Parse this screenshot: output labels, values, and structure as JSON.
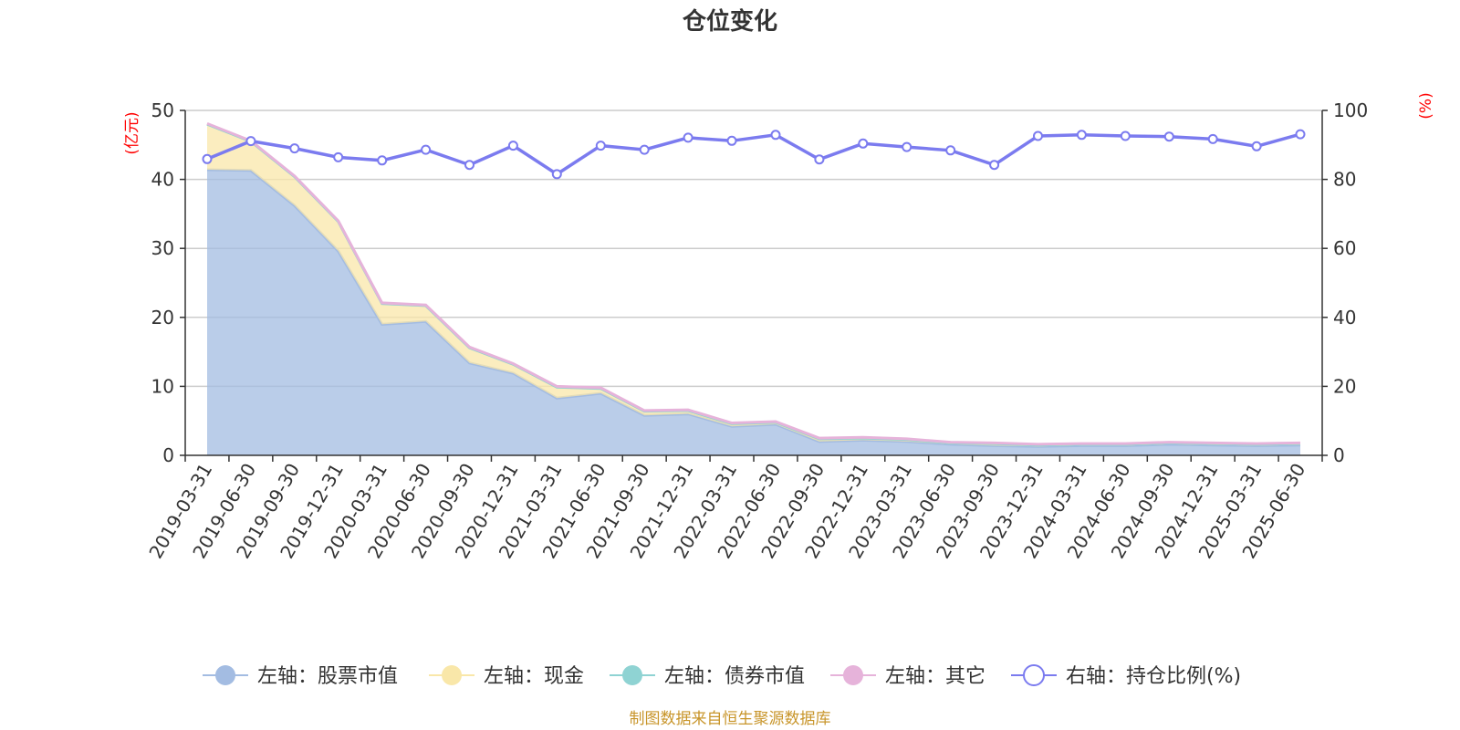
{
  "title": "仓位变化",
  "source": "制图数据来自恒生聚源数据库",
  "chart_data": {
    "type": "area",
    "categories": [
      "2019-03-31",
      "2019-06-30",
      "2019-09-30",
      "2019-12-31",
      "2020-03-31",
      "2020-06-30",
      "2020-09-30",
      "2020-12-31",
      "2021-03-31",
      "2021-06-30",
      "2021-09-30",
      "2021-12-31",
      "2022-03-31",
      "2022-06-30",
      "2022-09-30",
      "2022-12-31",
      "2023-03-31",
      "2023-06-30",
      "2023-09-30",
      "2023-12-31",
      "2024-03-31",
      "2024-06-30",
      "2024-09-30",
      "2024-12-31",
      "2025-03-31",
      "2025-06-30"
    ],
    "y_left": {
      "unit": "(亿元)",
      "min": 0,
      "max": 50,
      "ticks": [
        0,
        10,
        20,
        30,
        40,
        50
      ]
    },
    "y_right": {
      "unit": "(%)",
      "min": 0,
      "max": 100,
      "ticks": [
        0,
        20,
        40,
        60,
        80,
        100
      ]
    },
    "grid": true,
    "legend_position": "bottom",
    "series": [
      {
        "name": "左轴：股票市值",
        "axis": "left",
        "kind": "area",
        "color": "#a3bce2",
        "values": [
          41.4,
          41.3,
          36.2,
          29.6,
          19.0,
          19.4,
          13.4,
          11.9,
          8.3,
          9.0,
          5.8,
          6.0,
          4.2,
          4.5,
          2.0,
          2.2,
          2.0,
          1.6,
          1.4,
          1.3,
          1.4,
          1.4,
          1.6,
          1.5,
          1.4,
          1.5
        ]
      },
      {
        "name": "左轴：现金",
        "axis": "left",
        "kind": "area",
        "color": "#f9e7a9",
        "values": [
          6.6,
          4.2,
          4.2,
          4.3,
          3.0,
          2.3,
          2.2,
          1.3,
          1.6,
          0.7,
          0.6,
          0.5,
          0.4,
          0.3,
          0.4,
          0.3,
          0.3,
          0.2,
          0.3,
          0.2,
          0.2,
          0.2,
          0.2,
          0.2,
          0.2,
          0.2
        ]
      },
      {
        "name": "左轴：债券市值",
        "axis": "left",
        "kind": "area",
        "color": "#8fd3d3",
        "values": [
          0,
          0,
          0,
          0,
          0,
          0,
          0,
          0,
          0,
          0,
          0,
          0,
          0,
          0,
          0,
          0,
          0,
          0,
          0,
          0,
          0,
          0,
          0,
          0,
          0,
          0
        ]
      },
      {
        "name": "左轴：其它",
        "axis": "left",
        "kind": "area",
        "color": "#e6b3da",
        "values": [
          0.1,
          0.1,
          0.1,
          0.1,
          0.1,
          0.1,
          0.1,
          0.1,
          0.1,
          0.1,
          0.1,
          0.1,
          0.1,
          0.1,
          0.1,
          0.1,
          0.1,
          0.1,
          0.1,
          0.1,
          0.1,
          0.1,
          0.1,
          0.1,
          0.1,
          0.1
        ]
      },
      {
        "name": "右轴：持仓比例(%)",
        "axis": "right",
        "kind": "line",
        "color": "#7b7bef",
        "values": [
          85.9,
          91.1,
          89.0,
          86.4,
          85.5,
          88.6,
          84.2,
          89.8,
          81.5,
          89.8,
          88.6,
          92.1,
          91.2,
          92.9,
          85.8,
          90.4,
          89.4,
          88.4,
          84.2,
          92.6,
          92.9,
          92.6,
          92.4,
          91.7,
          89.6,
          93.1
        ]
      }
    ]
  }
}
